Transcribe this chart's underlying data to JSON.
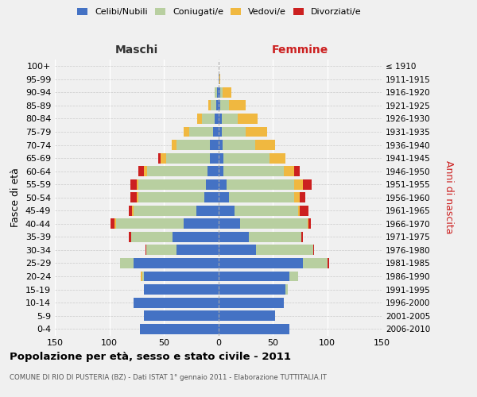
{
  "age_groups": [
    "0-4",
    "5-9",
    "10-14",
    "15-19",
    "20-24",
    "25-29",
    "30-34",
    "35-39",
    "40-44",
    "45-49",
    "50-54",
    "55-59",
    "60-64",
    "65-69",
    "70-74",
    "75-79",
    "80-84",
    "85-89",
    "90-94",
    "95-99",
    "100+"
  ],
  "birth_years": [
    "2006-2010",
    "2001-2005",
    "1996-2000",
    "1991-1995",
    "1986-1990",
    "1981-1985",
    "1976-1980",
    "1971-1975",
    "1966-1970",
    "1961-1965",
    "1956-1960",
    "1951-1955",
    "1946-1950",
    "1941-1945",
    "1936-1940",
    "1931-1935",
    "1926-1930",
    "1921-1925",
    "1916-1920",
    "1911-1915",
    "≤ 1910"
  ],
  "males": {
    "celibe": [
      72,
      68,
      78,
      68,
      68,
      78,
      38,
      42,
      32,
      20,
      13,
      11,
      10,
      8,
      8,
      5,
      3,
      2,
      1,
      0,
      0
    ],
    "coniugato": [
      0,
      0,
      0,
      0,
      2,
      12,
      28,
      38,
      62,
      58,
      60,
      62,
      55,
      40,
      30,
      22,
      12,
      5,
      2,
      0,
      0
    ],
    "vedovo": [
      0,
      0,
      0,
      0,
      1,
      0,
      0,
      0,
      1,
      1,
      2,
      2,
      3,
      5,
      5,
      5,
      4,
      2,
      0,
      0,
      0
    ],
    "divorziato": [
      0,
      0,
      0,
      0,
      0,
      0,
      1,
      2,
      4,
      3,
      6,
      6,
      5,
      2,
      0,
      0,
      0,
      0,
      0,
      0,
      0
    ]
  },
  "females": {
    "nubile": [
      65,
      52,
      60,
      62,
      65,
      78,
      35,
      28,
      20,
      15,
      10,
      8,
      5,
      5,
      4,
      3,
      3,
      2,
      2,
      1,
      0
    ],
    "coniugata": [
      0,
      0,
      0,
      2,
      8,
      22,
      52,
      48,
      62,
      58,
      60,
      62,
      55,
      42,
      30,
      22,
      15,
      8,
      2,
      0,
      0
    ],
    "vedova": [
      0,
      0,
      0,
      0,
      0,
      0,
      0,
      0,
      1,
      2,
      5,
      8,
      10,
      15,
      18,
      20,
      18,
      15,
      8,
      1,
      0
    ],
    "divorziata": [
      0,
      0,
      0,
      0,
      0,
      2,
      1,
      2,
      2,
      8,
      5,
      8,
      5,
      0,
      0,
      0,
      0,
      0,
      0,
      0,
      0
    ]
  },
  "colors": {
    "celibe": "#4472c4",
    "coniugato": "#b8cfa0",
    "vedovo": "#f0b840",
    "divorziato": "#cc2020"
  },
  "xlim": 150,
  "title": "Popolazione per età, sesso e stato civile - 2011",
  "subtitle": "COMUNE DI RIO DI PUSTERIA (BZ) - Dati ISTAT 1° gennaio 2011 - Elaborazione TUTTITALIA.IT",
  "ylabel_left": "Fasce di età",
  "ylabel_right": "Anni di nascita",
  "header_left": "Maschi",
  "header_right": "Femmine",
  "legend_labels": [
    "Celibi/Nubili",
    "Coniugati/e",
    "Vedovi/e",
    "Divorziati/e"
  ],
  "bg_color": "#f0f0f0",
  "plot_bg": "#f0f0f0",
  "grid_color_x": "#ffffff",
  "grid_color_y": "#cccccc"
}
